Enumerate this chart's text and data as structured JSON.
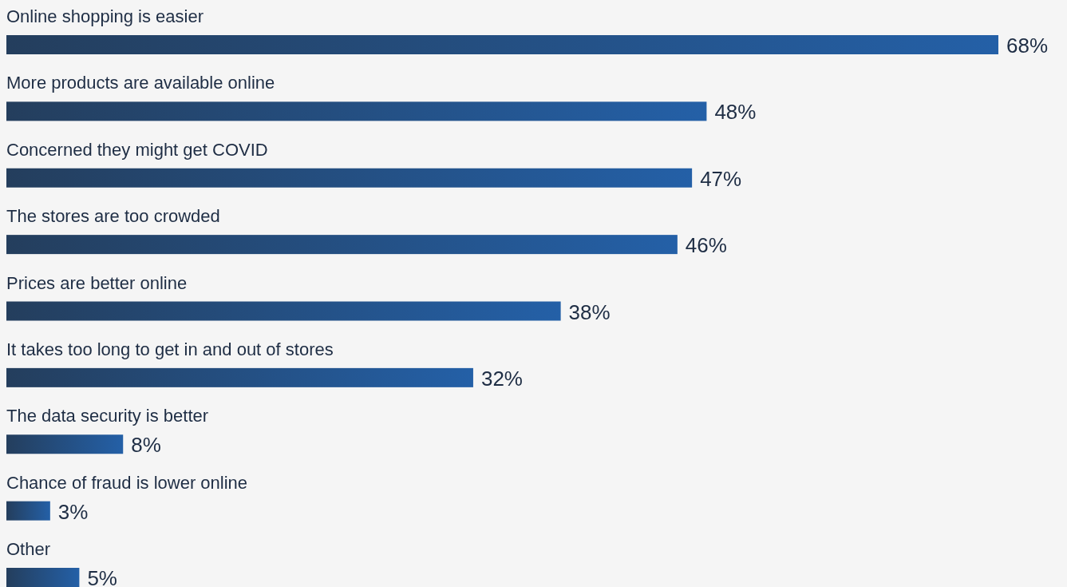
{
  "chart_data": {
    "type": "bar",
    "orientation": "horizontal",
    "categories": [
      "Online shopping is easier",
      "More products are available online",
      "Concerned they might get COVID",
      "The stores are too crowded",
      "Prices are better online",
      "It takes too long to get in and out of stores",
      "The data security is better",
      "Chance of fraud is lower online",
      "Other"
    ],
    "values": [
      68,
      48,
      47,
      46,
      38,
      32,
      8,
      3,
      5
    ],
    "value_labels": [
      "68%",
      "48%",
      "47%",
      "46%",
      "38%",
      "32%",
      "8%",
      "3%",
      "5%"
    ],
    "color": "#2460a7"
  }
}
